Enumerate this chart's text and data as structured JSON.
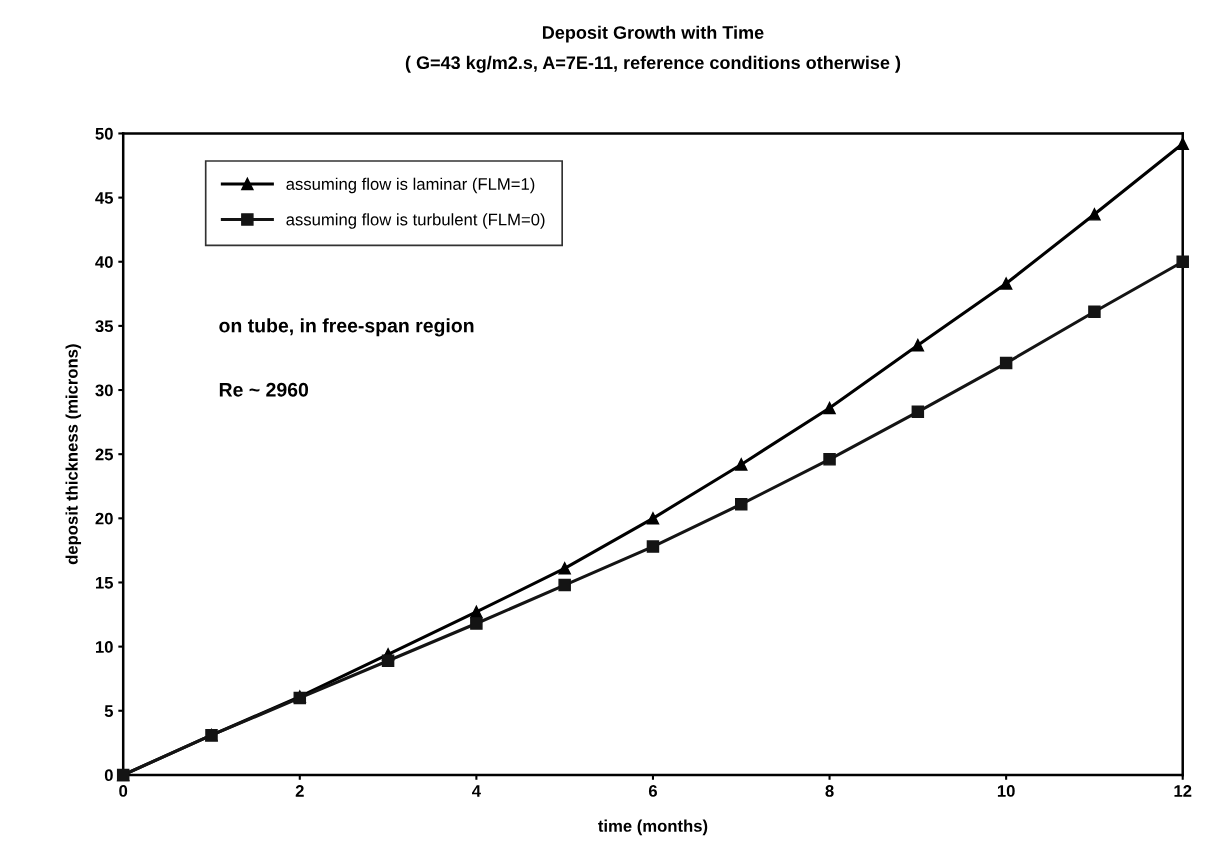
{
  "chart_data": {
    "type": "line",
    "title": "Deposit Growth with Time",
    "subtitle": "( G=43 kg/m2.s, A=7E-11, reference conditions otherwise )",
    "xlabel": "time (months)",
    "ylabel": "deposit thickness (microns)",
    "x": [
      0,
      1,
      2,
      3,
      4,
      5,
      6,
      7,
      8,
      9,
      10,
      11,
      12
    ],
    "series": [
      {
        "name": "assuming flow is laminar (FLM=1)",
        "color": "#000000",
        "marker": "triangle",
        "values": [
          0,
          3.1,
          6.1,
          9.4,
          12.7,
          16.1,
          20.0,
          24.2,
          28.6,
          33.5,
          38.3,
          43.7,
          49.2
        ]
      },
      {
        "name": "assuming flow is turbulent (FLM=0)",
        "color": "#141414",
        "marker": "square",
        "values": [
          0,
          3.1,
          6.0,
          8.9,
          11.8,
          14.8,
          17.8,
          21.1,
          24.6,
          28.3,
          32.1,
          36.1,
          40.0
        ]
      }
    ],
    "xlim": [
      0,
      12
    ],
    "xticks": [
      0,
      2,
      4,
      6,
      8,
      10,
      12
    ],
    "ylim": [
      0,
      50
    ],
    "yticks": [
      0,
      5,
      10,
      15,
      20,
      25,
      30,
      35,
      40,
      45,
      50
    ],
    "grid": false,
    "legend": "top left",
    "line_style": "solid",
    "annotations": [
      "on tube, in free-span region",
      "Re ~ 2960"
    ]
  }
}
